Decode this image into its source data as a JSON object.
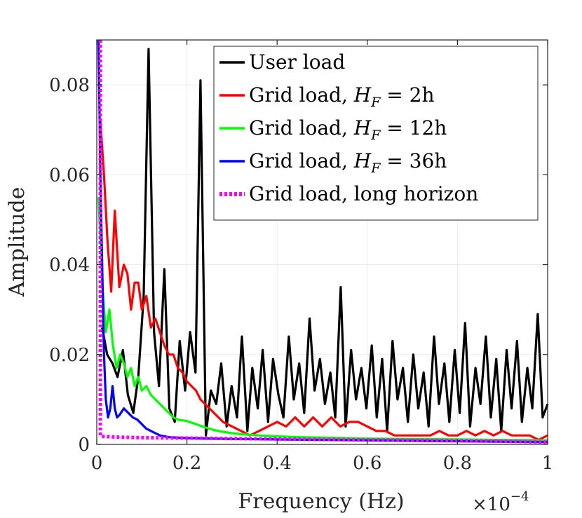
{
  "chart_data": {
    "type": "line",
    "xlabel": "Frequency (Hz)",
    "ylabel": "Amplitude",
    "x_multiplier": "×10",
    "x_multiplier_exponent": "−4",
    "xlim": [
      0,
      1
    ],
    "ylim": [
      0,
      0.09
    ],
    "x_ticks": [
      "0",
      "0.2",
      "0.4",
      "0.6",
      "0.8",
      "1"
    ],
    "y_ticks": [
      "0",
      "0.02",
      "0.04",
      "0.06",
      "0.08"
    ],
    "grid": true,
    "legend_position": "top-right",
    "series": [
      {
        "name": "User load",
        "color": "#000000",
        "style": "solid",
        "x": [
          0.012,
          0.023,
          0.035,
          0.046,
          0.058,
          0.069,
          0.081,
          0.092,
          0.104,
          0.115,
          0.127,
          0.138,
          0.15,
          0.161,
          0.173,
          0.184,
          0.196,
          0.207,
          0.219,
          0.23,
          0.242,
          0.253,
          0.265,
          0.276,
          0.288,
          0.299,
          0.311,
          0.322,
          0.334,
          0.345,
          0.357,
          0.368,
          0.38,
          0.391,
          0.403,
          0.414,
          0.426,
          0.437,
          0.449,
          0.46,
          0.472,
          0.483,
          0.495,
          0.506,
          0.518,
          0.529,
          0.541,
          0.552,
          0.564,
          0.575,
          0.587,
          0.598,
          0.61,
          0.621,
          0.633,
          0.644,
          0.656,
          0.667,
          0.679,
          0.69,
          0.702,
          0.713,
          0.725,
          0.736,
          0.748,
          0.759,
          0.771,
          0.782,
          0.794,
          0.805,
          0.817,
          0.828,
          0.84,
          0.851,
          0.863,
          0.874,
          0.886,
          0.897,
          0.909,
          0.92,
          0.932,
          0.943,
          0.955,
          0.966,
          0.978,
          0.989,
          1.0
        ],
        "y": [
          0.026,
          0.02,
          0.018,
          0.015,
          0.021,
          0.011,
          0.007,
          0.015,
          0.033,
          0.088,
          0.025,
          0.013,
          0.039,
          0.008,
          0.005,
          0.023,
          0.012,
          0.025,
          0.016,
          0.081,
          0.002,
          0.012,
          0.009,
          0.018,
          0.004,
          0.013,
          0.006,
          0.024,
          0.003,
          0.017,
          0.008,
          0.021,
          0.005,
          0.019,
          0.011,
          0.006,
          0.024,
          0.01,
          0.018,
          0.007,
          0.028,
          0.012,
          0.019,
          0.009,
          0.016,
          0.006,
          0.035,
          0.004,
          0.021,
          0.01,
          0.017,
          0.008,
          0.022,
          0.006,
          0.019,
          0.003,
          0.023,
          0.01,
          0.017,
          0.005,
          0.02,
          0.008,
          0.016,
          0.004,
          0.024,
          0.009,
          0.018,
          0.005,
          0.021,
          0.007,
          0.027,
          0.004,
          0.017,
          0.009,
          0.024,
          0.006,
          0.019,
          0.003,
          0.021,
          0.008,
          0.023,
          0.005,
          0.017,
          0.008,
          0.029,
          0.006,
          0.009
        ]
      },
      {
        "name": "Grid load, H_F = 2h",
        "color": "#ff0000",
        "style": "solid",
        "x": [
          0.008,
          0.016,
          0.024,
          0.032,
          0.04,
          0.05,
          0.06,
          0.068,
          0.076,
          0.084,
          0.092,
          0.1,
          0.11,
          0.12,
          0.13,
          0.14,
          0.15,
          0.16,
          0.17,
          0.18,
          0.19,
          0.2,
          0.21,
          0.22,
          0.23,
          0.24,
          0.25,
          0.26,
          0.27,
          0.28,
          0.3,
          0.32,
          0.34,
          0.36,
          0.38,
          0.4,
          0.42,
          0.44,
          0.46,
          0.48,
          0.5,
          0.52,
          0.54,
          0.56,
          0.58,
          0.6,
          0.62,
          0.64,
          0.66,
          0.68,
          0.7,
          0.72,
          0.74,
          0.76,
          0.78,
          0.8,
          0.82,
          0.84,
          0.86,
          0.88,
          0.9,
          0.92,
          0.94,
          0.96,
          0.98,
          1.0
        ],
        "y": [
          0.072,
          0.06,
          0.045,
          0.034,
          0.052,
          0.035,
          0.04,
          0.038,
          0.03,
          0.036,
          0.036,
          0.03,
          0.033,
          0.026,
          0.028,
          0.025,
          0.022,
          0.02,
          0.02,
          0.017,
          0.016,
          0.014,
          0.013,
          0.012,
          0.01,
          0.009,
          0.008,
          0.007,
          0.006,
          0.005,
          0.004,
          0.003,
          0.002,
          0.003,
          0.004,
          0.005,
          0.004,
          0.006,
          0.004,
          0.006,
          0.004,
          0.006,
          0.004,
          0.005,
          0.005,
          0.004,
          0.003,
          0.003,
          0.002,
          0.002,
          0.002,
          0.002,
          0.002,
          0.003,
          0.002,
          0.002,
          0.003,
          0.002,
          0.003,
          0.002,
          0.003,
          0.002,
          0.002,
          0.002,
          0.001,
          0.002
        ]
      },
      {
        "name": "Grid load, H_F = 12h",
        "color": "#00ff00",
        "style": "solid",
        "x": [
          0.004,
          0.012,
          0.02,
          0.028,
          0.036,
          0.044,
          0.052,
          0.06,
          0.068,
          0.076,
          0.084,
          0.092,
          0.1,
          0.11,
          0.12,
          0.13,
          0.14,
          0.15,
          0.16,
          0.17,
          0.18,
          0.2,
          0.22,
          0.24,
          0.26,
          0.28,
          0.3,
          0.33,
          0.36,
          0.4,
          0.45,
          0.5,
          0.6,
          0.7,
          0.8,
          0.9,
          1.0
        ],
        "y": [
          0.055,
          0.036,
          0.025,
          0.03,
          0.022,
          0.017,
          0.02,
          0.018,
          0.015,
          0.017,
          0.013,
          0.015,
          0.012,
          0.013,
          0.011,
          0.01,
          0.009,
          0.008,
          0.007,
          0.006,
          0.0055,
          0.0052,
          0.0045,
          0.0038,
          0.0032,
          0.0028,
          0.0025,
          0.0022,
          0.002,
          0.0018,
          0.0016,
          0.0015,
          0.0013,
          0.0012,
          0.0011,
          0.001,
          0.0009
        ]
      },
      {
        "name": "Grid load, H_F = 36h",
        "color": "#0000ff",
        "style": "solid",
        "x": [
          0.004,
          0.008,
          0.012,
          0.016,
          0.02,
          0.025,
          0.03,
          0.035,
          0.04,
          0.045,
          0.05,
          0.06,
          0.07,
          0.08,
          0.09,
          0.1,
          0.11,
          0.12,
          0.13,
          0.14,
          0.15,
          0.16,
          0.18,
          0.2,
          0.25,
          0.3,
          0.4,
          0.5,
          0.6,
          0.7,
          0.8,
          0.9,
          1.0
        ],
        "y": [
          0.09,
          0.06,
          0.04,
          0.02,
          0.01,
          0.006,
          0.008,
          0.013,
          0.008,
          0.006,
          0.0065,
          0.008,
          0.007,
          0.006,
          0.0055,
          0.0045,
          0.0035,
          0.003,
          0.0025,
          0.002,
          0.0018,
          0.0016,
          0.0015,
          0.0014,
          0.0013,
          0.0012,
          0.0011,
          0.001,
          0.0009,
          0.0008,
          0.0007,
          0.0006,
          0.0005
        ]
      },
      {
        "name": "Grid load, long horizon",
        "color": "#ff00ff",
        "style": "dotted",
        "x": [
          0.008,
          0.008,
          0.01,
          0.05,
          0.1,
          0.2,
          0.3,
          0.4,
          0.5,
          0.6,
          0.7,
          0.8,
          0.9,
          1.0
        ],
        "y": [
          0.09,
          0.002,
          0.0018,
          0.0016,
          0.0015,
          0.0014,
          0.0013,
          0.0012,
          0.0011,
          0.001,
          0.0009,
          0.0008,
          0.0007,
          0.0005
        ]
      }
    ],
    "legend": [
      {
        "prefix": "User load",
        "math": "",
        "sub": "",
        "suffix": ""
      },
      {
        "prefix": "Grid load, ",
        "math": "H",
        "sub": "F",
        "suffix": " = 2h"
      },
      {
        "prefix": "Grid load, ",
        "math": "H",
        "sub": "F",
        "suffix": " = 12h"
      },
      {
        "prefix": "Grid load, ",
        "math": "H",
        "sub": "F",
        "suffix": " = 36h"
      },
      {
        "prefix": "Grid load, long horizon",
        "math": "",
        "sub": "",
        "suffix": ""
      }
    ]
  }
}
